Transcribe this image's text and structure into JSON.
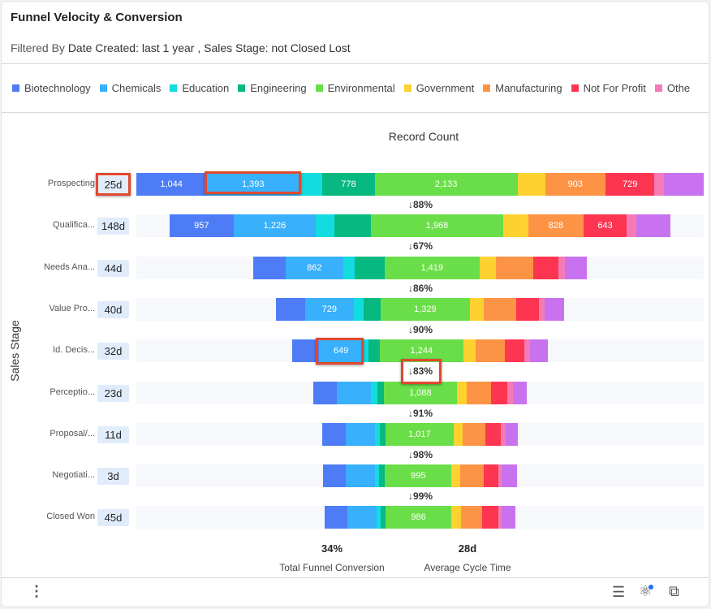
{
  "header": {
    "title": "Funnel Velocity & Conversion",
    "filter_prefix": "Filtered By",
    "filter_text": "Date Created: last 1 year , Sales Stage: not Closed Lost"
  },
  "chart_data": {
    "type": "bar",
    "orientation": "horizontal-stacked-funnel",
    "title": "Record Count",
    "ylabel": "Sales Stage",
    "legend_position": "top",
    "series": [
      {
        "name": "Biotechnology",
        "color": "#4e7cf6"
      },
      {
        "name": "Chemicals",
        "color": "#38b0fb"
      },
      {
        "name": "Education",
        "color": "#13dce0"
      },
      {
        "name": "Engineering",
        "color": "#07b981"
      },
      {
        "name": "Environmental",
        "color": "#6ade48"
      },
      {
        "name": "Government",
        "color": "#fdd130"
      },
      {
        "name": "Manufacturing",
        "color": "#fd9345"
      },
      {
        "name": "Not For Profit",
        "color": "#fd3551"
      },
      {
        "name": "Othe",
        "color": "#f67bb4"
      },
      {
        "name": "",
        "color": "#c972ef"
      }
    ],
    "stages": [
      {
        "label": "Prospecting",
        "days": "25d",
        "values": [
          1044,
          1393,
          340,
          778,
          2133,
          410,
          903,
          729,
          145,
          590
        ],
        "labeled": [
          1,
          1,
          0,
          1,
          1,
          0,
          1,
          1,
          0,
          0
        ],
        "conversion": "↓88%"
      },
      {
        "label": "Qualifica...",
        "days": "148d",
        "values": [
          957,
          1226,
          280,
          545,
          1968,
          375,
          828,
          643,
          145,
          510
        ],
        "labeled": [
          1,
          1,
          0,
          0,
          1,
          0,
          1,
          1,
          0,
          0
        ],
        "conversion": "↓67%"
      },
      {
        "label": "Needs Ana...",
        "days": "44d",
        "values": [
          480,
          862,
          170,
          445,
          1419,
          240,
          565,
          375,
          95,
          325
        ],
        "labeled": [
          0,
          1,
          0,
          0,
          1,
          0,
          0,
          0,
          0,
          0
        ],
        "conversion": "↓86%"
      },
      {
        "label": "Value Pro...",
        "days": "40d",
        "values": [
          430,
          729,
          145,
          255,
          1329,
          205,
          490,
          335,
          85,
          290
        ],
        "labeled": [
          0,
          1,
          0,
          0,
          1,
          0,
          0,
          0,
          0,
          0
        ],
        "conversion": "↓90%"
      },
      {
        "label": "Id. Decis...",
        "days": "32d",
        "values": [
          400,
          649,
          85,
          170,
          1244,
          190,
          430,
          290,
          85,
          265
        ],
        "labeled": [
          0,
          1,
          0,
          0,
          1,
          0,
          0,
          0,
          0,
          0
        ],
        "conversion": "↓83%"
      },
      {
        "label": "Perceptio...",
        "days": "23d",
        "values": [
          350,
          515,
          95,
          95,
          1088,
          145,
          370,
          240,
          85,
          205
        ],
        "labeled": [
          0,
          0,
          0,
          0,
          1,
          0,
          0,
          0,
          0,
          0
        ],
        "conversion": "↓91%"
      },
      {
        "label": "Proposal/...",
        "days": "11d",
        "values": [
          350,
          435,
          75,
          85,
          1017,
          135,
          340,
          230,
          75,
          180
        ],
        "labeled": [
          0,
          0,
          0,
          0,
          1,
          0,
          0,
          0,
          0,
          0
        ],
        "conversion": "↓98%"
      },
      {
        "label": "Negotiati...",
        "days": "3d",
        "values": [
          340,
          435,
          60,
          85,
          995,
          135,
          340,
          220,
          50,
          230
        ],
        "labeled": [
          0,
          0,
          0,
          0,
          1,
          0,
          0,
          0,
          0,
          0
        ],
        "conversion": "↓99%"
      },
      {
        "label": "Closed Won",
        "days": "45d",
        "values": [
          340,
          435,
          60,
          75,
          986,
          145,
          315,
          240,
          50,
          205
        ],
        "labeled": [
          0,
          0,
          0,
          0,
          1,
          0,
          0,
          0,
          0,
          0
        ],
        "conversion": ""
      }
    ]
  },
  "kpis": [
    {
      "value": "34%",
      "label": "Total Funnel Conversion"
    },
    {
      "value": "28d",
      "label": "Average Cycle Time"
    }
  ]
}
